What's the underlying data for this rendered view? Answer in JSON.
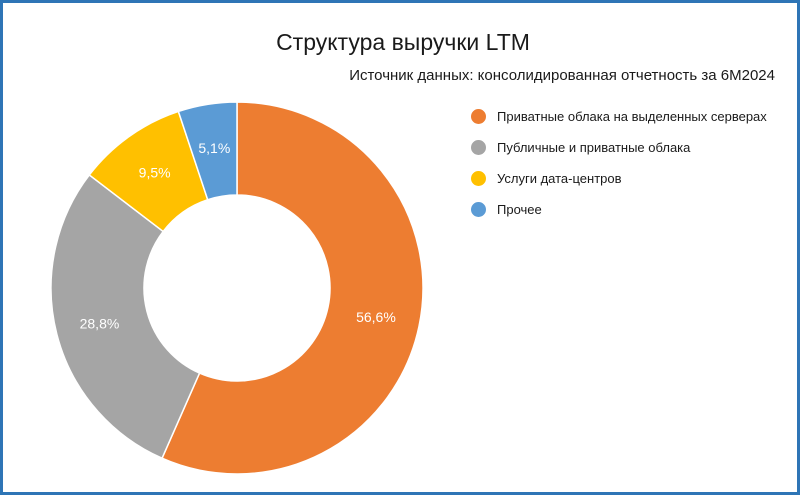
{
  "chart_data": {
    "type": "pie",
    "variant": "donut",
    "title": "Структура выручки LTM",
    "subtitle": "Источник данных: консолидированная отчетность за 6М2024",
    "legend_position": "right",
    "slices": [
      {
        "label": "Приватные облака на выделенных серверах",
        "value": 56.6,
        "value_label": "56,6%",
        "color": "#ed7d31"
      },
      {
        "label": "Публичные и приватные облака",
        "value": 28.8,
        "value_label": "28,8%",
        "color": "#a5a5a5"
      },
      {
        "label": "Услуги дата-центров",
        "value": 9.5,
        "value_label": "9,5%",
        "color": "#ffc000"
      },
      {
        "label": "Прочее",
        "value": 5.1,
        "value_label": "5,1%",
        "color": "#5b9bd5"
      }
    ]
  }
}
